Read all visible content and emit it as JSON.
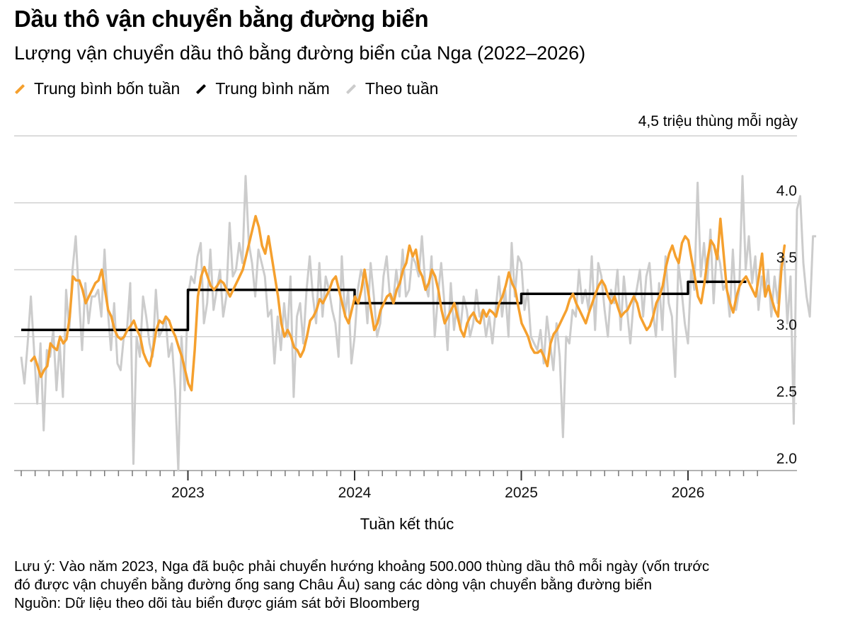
{
  "header": {
    "title": "Dầu thô vận chuyển bằng đường biển",
    "subtitle": "Lượng vận chuyển dầu thô bằng đường biển của Nga (2022–2026)"
  },
  "legend": [
    {
      "label": "Trung bình bốn tuần",
      "color": "#f5a02e"
    },
    {
      "label": "Trung bình năm",
      "color": "#000000"
    },
    {
      "label": "Theo tuần",
      "color": "#cccccc"
    }
  ],
  "footer": {
    "note_line1": "Lưu ý: Vào năm 2023, Nga đã buộc phải chuyển hướng khoảng 500.000 thùng dầu thô mỗi ngày (vốn trước",
    "note_line2": "đó được vận chuyển bằng đường ống sang Châu Âu) sang các dòng vận chuyển bằng đường biển",
    "source": "Nguồn: Dữ liệu theo dõi tàu biển được giám sát bởi Bloomberg"
  },
  "chart_data": {
    "type": "line",
    "unit_label": "4,5 triệu thùng mỗi ngày",
    "xlabel": "Tuần kết thúc",
    "ylim": [
      2.0,
      4.5
    ],
    "yticks": [
      {
        "value": 4.0,
        "label": "4.0"
      },
      {
        "value": 3.5,
        "label": "3.5"
      },
      {
        "value": 3.0,
        "label": "3.0"
      },
      {
        "value": 2.5,
        "label": "2.5"
      },
      {
        "value": 2.0,
        "label": "2.0"
      }
    ],
    "xlim": [
      2022.0,
      2026.45
    ],
    "xticks": [
      {
        "value": 2023,
        "label": "2023"
      },
      {
        "value": 2024,
        "label": "2024"
      },
      {
        "value": 2025,
        "label": "2025"
      },
      {
        "value": 2026,
        "label": "2026"
      }
    ],
    "grid": true,
    "series": [
      {
        "name": "Theo tuần",
        "color": "#cccccc",
        "x_start": 2022.0,
        "x_step": 0.01923,
        "values": [
          2.85,
          2.65,
          2.95,
          3.3,
          2.9,
          2.5,
          2.95,
          2.3,
          2.9,
          2.85,
          3.05,
          2.6,
          2.95,
          2.55,
          3.35,
          3.05,
          3.5,
          3.75,
          3.3,
          2.9,
          3.4,
          3.1,
          3.3,
          3.3,
          3.35,
          3.15,
          3.65,
          3.2,
          2.9,
          3.25,
          2.8,
          2.75,
          3.0,
          3.05,
          3.4,
          2.05,
          3.0,
          2.85,
          3.3,
          3.15,
          2.95,
          2.85,
          3.35,
          3.0,
          3.05,
          3.15,
          2.85,
          2.95,
          2.6,
          2.0,
          3.0,
          2.6,
          3.3,
          3.45,
          3.4,
          3.6,
          3.7,
          3.1,
          3.25,
          3.65,
          3.2,
          3.35,
          3.5,
          3.15,
          3.3,
          3.85,
          3.45,
          3.5,
          3.7,
          3.55,
          4.2,
          3.7,
          3.55,
          3.3,
          3.65,
          3.55,
          3.45,
          3.15,
          3.2,
          2.8,
          3.15,
          2.9,
          3.25,
          3.0,
          3.45,
          2.55,
          3.15,
          3.25,
          2.95,
          3.35,
          3.6,
          3.3,
          3.1,
          3.55,
          3.15,
          3.45,
          3.35,
          3.2,
          3.1,
          2.85,
          3.6,
          3.15,
          3.35,
          2.8,
          3.0,
          3.35,
          3.5,
          3.4,
          3.1,
          3.55,
          3.3,
          3.0,
          3.1,
          3.45,
          3.6,
          3.3,
          3.25,
          3.5,
          3.3,
          3.65,
          3.3,
          3.35,
          3.6,
          3.55,
          3.45,
          3.75,
          3.4,
          3.3,
          3.6,
          3.0,
          3.3,
          3.55,
          3.25,
          2.9,
          3.4,
          3.05,
          3.25,
          3.05,
          3.3,
          3.2,
          3.0,
          3.1,
          3.35,
          3.15,
          3.2,
          3.0,
          3.15,
          2.95,
          3.2,
          3.45,
          3.15,
          3.35,
          3.0,
          3.7,
          3.3,
          3.6,
          3.55,
          3.2,
          3.35,
          3.0,
          2.95,
          2.9,
          3.05,
          2.8,
          3.15,
          2.95,
          2.75,
          3.1,
          2.85,
          2.25,
          3.0,
          2.95,
          3.2,
          3.15,
          3.5,
          3.25,
          3.35,
          3.2,
          3.6,
          3.05,
          3.55,
          3.45,
          3.2,
          3.0,
          3.35,
          3.25,
          3.5,
          3.05,
          3.45,
          3.2,
          2.95,
          3.25,
          3.35,
          3.5,
          3.15,
          3.45,
          3.55,
          3.2,
          3.0,
          3.4,
          3.05,
          3.6,
          3.25,
          3.15,
          2.7,
          3.55,
          3.35,
          3.1,
          2.95,
          3.5,
          3.35,
          4.15,
          3.45,
          3.7,
          3.4,
          3.8,
          3.25,
          3.65,
          3.55,
          3.35,
          3.4,
          3.15,
          3.65,
          3.2,
          3.35,
          4.2,
          3.5,
          3.75,
          3.4,
          3.6,
          3.2,
          3.45,
          3.3,
          3.5,
          3.15,
          3.45,
          3.25,
          3.55,
          3.6,
          3.1,
          3.45,
          2.35,
          3.95,
          4.05,
          3.55,
          3.3,
          3.15,
          3.75,
          3.75
        ]
      },
      {
        "name": "Trung bình bốn tuần",
        "color": "#f5a02e",
        "x_start": 2022.06,
        "x_step": 0.01923,
        "values": [
          2.82,
          2.85,
          2.78,
          2.7,
          2.75,
          2.78,
          2.95,
          2.92,
          2.9,
          3.0,
          2.95,
          2.98,
          3.15,
          3.45,
          3.42,
          3.42,
          3.35,
          3.25,
          3.3,
          3.35,
          3.4,
          3.42,
          3.5,
          3.35,
          3.2,
          3.15,
          3.05,
          3.0,
          2.98,
          3.0,
          3.05,
          3.08,
          3.12,
          3.05,
          3.0,
          2.88,
          2.82,
          2.78,
          2.9,
          3.05,
          3.12,
          3.1,
          3.15,
          3.12,
          3.05,
          3.0,
          2.92,
          2.85,
          2.75,
          2.65,
          2.6,
          2.9,
          3.3,
          3.45,
          3.52,
          3.45,
          3.38,
          3.35,
          3.38,
          3.42,
          3.4,
          3.35,
          3.3,
          3.35,
          3.4,
          3.45,
          3.5,
          3.6,
          3.7,
          3.8,
          3.9,
          3.82,
          3.68,
          3.62,
          3.75,
          3.6,
          3.45,
          3.3,
          3.1,
          3.0,
          3.05,
          3.0,
          2.92,
          2.9,
          2.85,
          2.9,
          3.0,
          3.12,
          3.15,
          3.2,
          3.28,
          3.25,
          3.3,
          3.35,
          3.42,
          3.45,
          3.35,
          3.25,
          3.15,
          3.1,
          3.2,
          3.3,
          3.25,
          3.35,
          3.5,
          3.35,
          3.2,
          3.05,
          3.1,
          3.2,
          3.25,
          3.3,
          3.32,
          3.25,
          3.35,
          3.4,
          3.5,
          3.55,
          3.68,
          3.6,
          3.65,
          3.5,
          3.45,
          3.35,
          3.4,
          3.5,
          3.45,
          3.35,
          3.2,
          3.1,
          3.15,
          3.2,
          3.25,
          3.15,
          3.05,
          3.0,
          3.1,
          3.15,
          3.18,
          3.12,
          3.1,
          3.2,
          3.15,
          3.2,
          3.18,
          3.15,
          3.25,
          3.3,
          3.38,
          3.48,
          3.4,
          3.35,
          3.22,
          3.1,
          3.05,
          3.0,
          2.92,
          2.88,
          2.88,
          2.9,
          2.85,
          2.78,
          2.95,
          3.02,
          3.05,
          3.1,
          3.15,
          3.2,
          3.28,
          3.32,
          3.25,
          3.2,
          3.15,
          3.1,
          3.18,
          3.25,
          3.32,
          3.38,
          3.42,
          3.38,
          3.3,
          3.25,
          3.3,
          3.22,
          3.15,
          3.18,
          3.2,
          3.25,
          3.3,
          3.25,
          3.15,
          3.1,
          3.05,
          3.08,
          3.15,
          3.25,
          3.3,
          3.38,
          3.52,
          3.62,
          3.68,
          3.6,
          3.55,
          3.7,
          3.75,
          3.72,
          3.58,
          3.45,
          3.3,
          3.25,
          3.4,
          3.58,
          3.72,
          3.68,
          3.58,
          3.88,
          3.62,
          3.35,
          3.25,
          3.18,
          3.3,
          3.38,
          3.42,
          3.45,
          3.4,
          3.35,
          3.3,
          3.45,
          3.62,
          3.3,
          3.38,
          3.28,
          3.2,
          3.15,
          3.5,
          3.68
        ]
      },
      {
        "name": "Trung bình năm",
        "color": "#000000",
        "steps": [
          {
            "x0": 2022.0,
            "x1": 2023.0,
            "value": 3.05
          },
          {
            "x0": 2023.0,
            "x1": 2024.0,
            "value": 3.35
          },
          {
            "x0": 2024.0,
            "x1": 2025.0,
            "value": 3.25
          },
          {
            "x0": 2025.0,
            "x1": 2026.0,
            "value": 3.32
          },
          {
            "x0": 2026.0,
            "x1": 2026.35,
            "value": 3.41
          }
        ]
      }
    ]
  }
}
